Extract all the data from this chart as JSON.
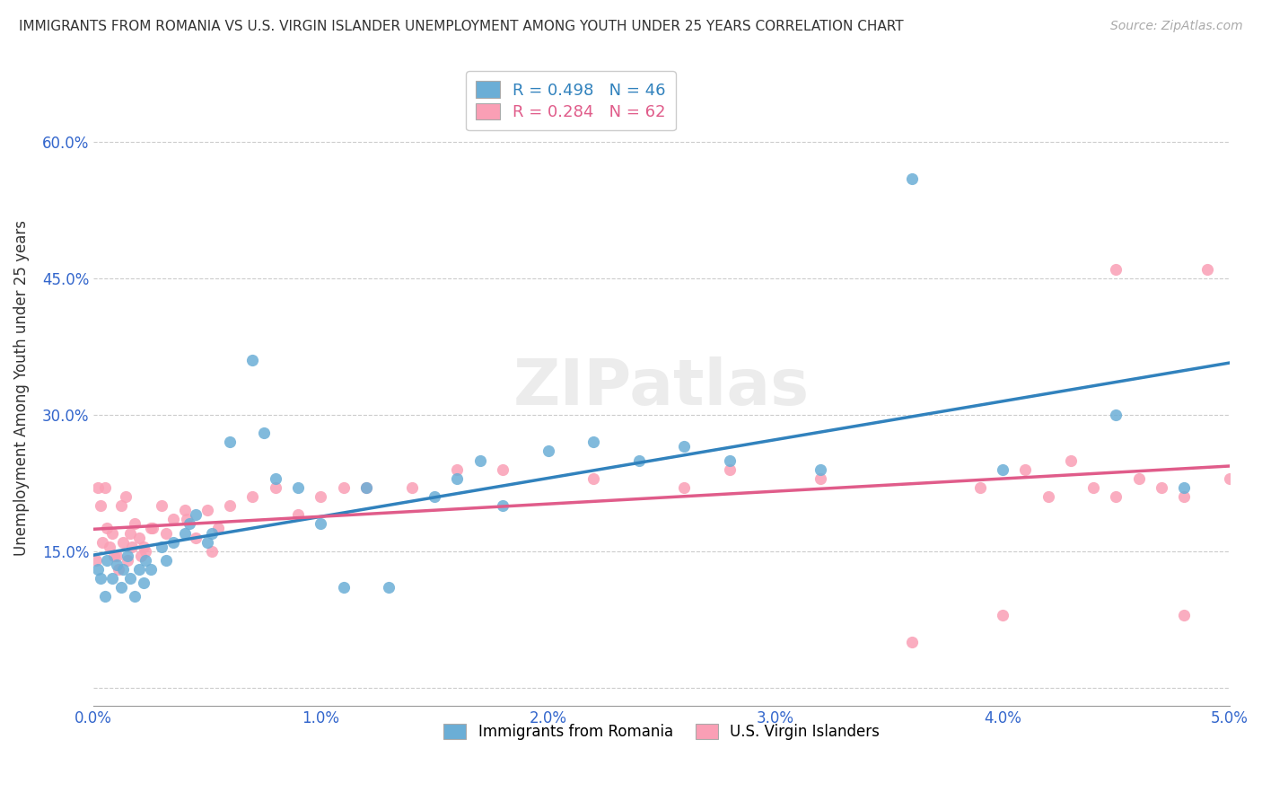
{
  "title": "IMMIGRANTS FROM ROMANIA VS U.S. VIRGIN ISLANDER UNEMPLOYMENT AMONG YOUTH UNDER 25 YEARS CORRELATION CHART",
  "source": "Source: ZipAtlas.com",
  "ylabel": "Unemployment Among Youth under 25 years",
  "xlim": [
    0.0,
    0.05
  ],
  "ylim": [
    -0.02,
    0.68
  ],
  "xticks": [
    0.0,
    0.01,
    0.02,
    0.03,
    0.04,
    0.05
  ],
  "xticklabels": [
    "0.0%",
    "1.0%",
    "2.0%",
    "3.0%",
    "4.0%",
    "5.0%"
  ],
  "ytick_positions": [
    0.0,
    0.15,
    0.3,
    0.45,
    0.6
  ],
  "yticklabels": [
    "",
    "15.0%",
    "30.0%",
    "45.0%",
    "60.0%"
  ],
  "grid_color": "#cccccc",
  "background_color": "#ffffff",
  "legend_romania_label": "R = 0.498   N = 46",
  "legend_vi_label": "R = 0.284   N = 62",
  "legend_bottom_romania": "Immigrants from Romania",
  "legend_bottom_vi": "U.S. Virgin Islanders",
  "romania_color": "#6baed6",
  "vi_color": "#fa9fb5",
  "romania_line_color": "#3182bd",
  "vi_line_color": "#e05c8a",
  "title_color": "#333333",
  "tick_color": "#3366cc",
  "romania_scatter_x": [
    0.0002,
    0.0003,
    0.0005,
    0.0006,
    0.0008,
    0.001,
    0.0012,
    0.0013,
    0.0015,
    0.0016,
    0.0018,
    0.002,
    0.0022,
    0.0023,
    0.0025,
    0.003,
    0.0032,
    0.0035,
    0.004,
    0.0042,
    0.0045,
    0.005,
    0.0052,
    0.006,
    0.007,
    0.0075,
    0.008,
    0.009,
    0.01,
    0.011,
    0.012,
    0.013,
    0.015,
    0.016,
    0.017,
    0.018,
    0.02,
    0.022,
    0.024,
    0.026,
    0.028,
    0.032,
    0.036,
    0.04,
    0.045,
    0.048
  ],
  "romania_scatter_y": [
    0.13,
    0.12,
    0.1,
    0.14,
    0.12,
    0.135,
    0.11,
    0.13,
    0.145,
    0.12,
    0.1,
    0.13,
    0.115,
    0.14,
    0.13,
    0.155,
    0.14,
    0.16,
    0.17,
    0.18,
    0.19,
    0.16,
    0.17,
    0.27,
    0.36,
    0.28,
    0.23,
    0.22,
    0.18,
    0.11,
    0.22,
    0.11,
    0.21,
    0.23,
    0.25,
    0.2,
    0.26,
    0.27,
    0.25,
    0.265,
    0.25,
    0.24,
    0.56,
    0.24,
    0.3,
    0.22
  ],
  "vi_scatter_x": [
    0.0001,
    0.0002,
    0.0003,
    0.0004,
    0.0005,
    0.0006,
    0.0007,
    0.0008,
    0.0009,
    0.001,
    0.0011,
    0.0012,
    0.0013,
    0.0014,
    0.0015,
    0.0016,
    0.0017,
    0.0018,
    0.002,
    0.0021,
    0.0022,
    0.0023,
    0.0025,
    0.0026,
    0.003,
    0.0032,
    0.0035,
    0.004,
    0.0041,
    0.0045,
    0.005,
    0.0052,
    0.0055,
    0.006,
    0.007,
    0.008,
    0.009,
    0.01,
    0.011,
    0.012,
    0.014,
    0.016,
    0.018,
    0.022,
    0.026,
    0.028,
    0.032,
    0.036,
    0.04,
    0.042,
    0.044,
    0.045,
    0.046,
    0.047,
    0.048,
    0.049,
    0.05,
    0.045,
    0.043,
    0.041,
    0.039,
    0.048
  ],
  "vi_scatter_y": [
    0.14,
    0.22,
    0.2,
    0.16,
    0.22,
    0.175,
    0.155,
    0.17,
    0.145,
    0.145,
    0.13,
    0.2,
    0.16,
    0.21,
    0.14,
    0.17,
    0.155,
    0.18,
    0.165,
    0.145,
    0.155,
    0.15,
    0.175,
    0.175,
    0.2,
    0.17,
    0.185,
    0.195,
    0.185,
    0.165,
    0.195,
    0.15,
    0.175,
    0.2,
    0.21,
    0.22,
    0.19,
    0.21,
    0.22,
    0.22,
    0.22,
    0.24,
    0.24,
    0.23,
    0.22,
    0.24,
    0.23,
    0.05,
    0.08,
    0.21,
    0.22,
    0.46,
    0.23,
    0.22,
    0.21,
    0.46,
    0.23,
    0.21,
    0.25,
    0.24,
    0.22,
    0.08
  ]
}
